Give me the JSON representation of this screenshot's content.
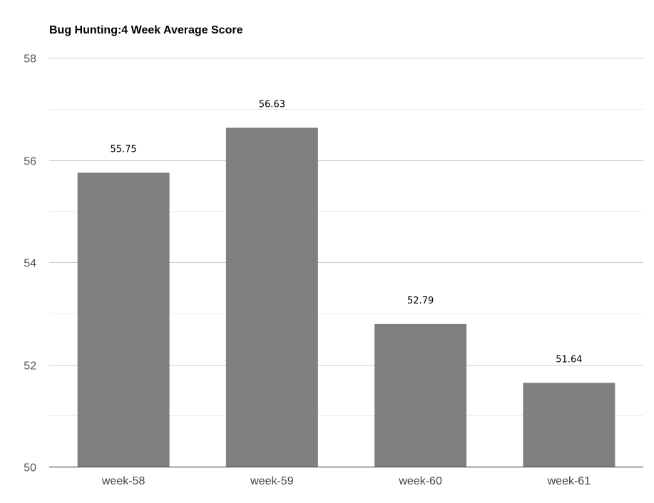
{
  "chart_data": {
    "type": "bar",
    "title": "Bug Hunting:4 Week Average Score",
    "categories": [
      "week-58",
      "week-59",
      "week-60",
      "week-61"
    ],
    "values": [
      55.75,
      56.63,
      52.79,
      51.64
    ],
    "data_labels": [
      "55.75",
      "56.63",
      "52.79",
      "51.64"
    ],
    "ylim": [
      50,
      58
    ],
    "yticks": [
      50,
      52,
      54,
      56,
      58
    ],
    "minor_gridlines": [
      51,
      53,
      55,
      57
    ],
    "grid": true,
    "bar_color": "#808080",
    "gridline_color": "#cccccc",
    "minor_gridline_color": "#ebebeb",
    "xlabel": "",
    "ylabel": ""
  }
}
